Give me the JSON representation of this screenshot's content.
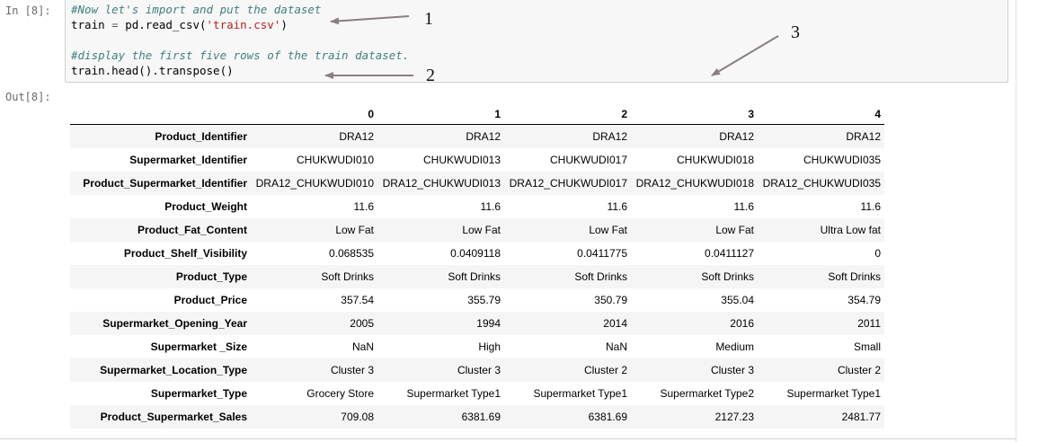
{
  "cell_in": {
    "prompt": "In [8]:",
    "lines": {
      "l1": "#Now let's import and put the dataset",
      "l2_var": "train",
      "l2_eq": " = ",
      "l2_call": "pd.read_csv(",
      "l2_str": "'train.csv'",
      "l2_close": ")",
      "l3": "#display the first five rows of the train dataset.",
      "l4": "train.head().transpose()"
    }
  },
  "cell_out": {
    "prompt": "Out[8]:"
  },
  "annotations": {
    "n1": "1",
    "n2": "2",
    "n3": "3"
  },
  "table": {
    "columns": [
      "0",
      "1",
      "2",
      "3",
      "4"
    ],
    "rows": [
      {
        "label": "Product_Identifier",
        "values": [
          "DRA12",
          "DRA12",
          "DRA12",
          "DRA12",
          "DRA12"
        ]
      },
      {
        "label": "Supermarket_Identifier",
        "values": [
          "CHUKWUDI010",
          "CHUKWUDI013",
          "CHUKWUDI017",
          "CHUKWUDI018",
          "CHUKWUDI035"
        ]
      },
      {
        "label": "Product_Supermarket_Identifier",
        "values": [
          "DRA12_CHUKWUDI010",
          "DRA12_CHUKWUDI013",
          "DRA12_CHUKWUDI017",
          "DRA12_CHUKWUDI018",
          "DRA12_CHUKWUDI035"
        ]
      },
      {
        "label": "Product_Weight",
        "values": [
          "11.6",
          "11.6",
          "11.6",
          "11.6",
          "11.6"
        ]
      },
      {
        "label": "Product_Fat_Content",
        "values": [
          "Low Fat",
          "Low Fat",
          "Low Fat",
          "Low Fat",
          "Ultra Low fat"
        ]
      },
      {
        "label": "Product_Shelf_Visibility",
        "values": [
          "0.068535",
          "0.0409118",
          "0.0411775",
          "0.0411127",
          "0"
        ]
      },
      {
        "label": "Product_Type",
        "values": [
          "Soft Drinks",
          "Soft Drinks",
          "Soft Drinks",
          "Soft Drinks",
          "Soft Drinks"
        ]
      },
      {
        "label": "Product_Price",
        "values": [
          "357.54",
          "355.79",
          "350.79",
          "355.04",
          "354.79"
        ]
      },
      {
        "label": "Supermarket_Opening_Year",
        "values": [
          "2005",
          "1994",
          "2014",
          "2016",
          "2011"
        ]
      },
      {
        "label": "Supermarket _Size",
        "values": [
          "NaN",
          "High",
          "NaN",
          "Medium",
          "Small"
        ]
      },
      {
        "label": "Supermarket_Location_Type",
        "values": [
          "Cluster 3",
          "Cluster 3",
          "Cluster 2",
          "Cluster 3",
          "Cluster 2"
        ]
      },
      {
        "label": "Supermarket_Type",
        "values": [
          "Grocery Store",
          "Supermarket Type1",
          "Supermarket Type1",
          "Supermarket Type2",
          "Supermarket Type1"
        ]
      },
      {
        "label": "Product_Supermarket_Sales",
        "values": [
          "709.08",
          "6381.69",
          "6381.69",
          "2127.23",
          "2481.77"
        ]
      }
    ]
  }
}
